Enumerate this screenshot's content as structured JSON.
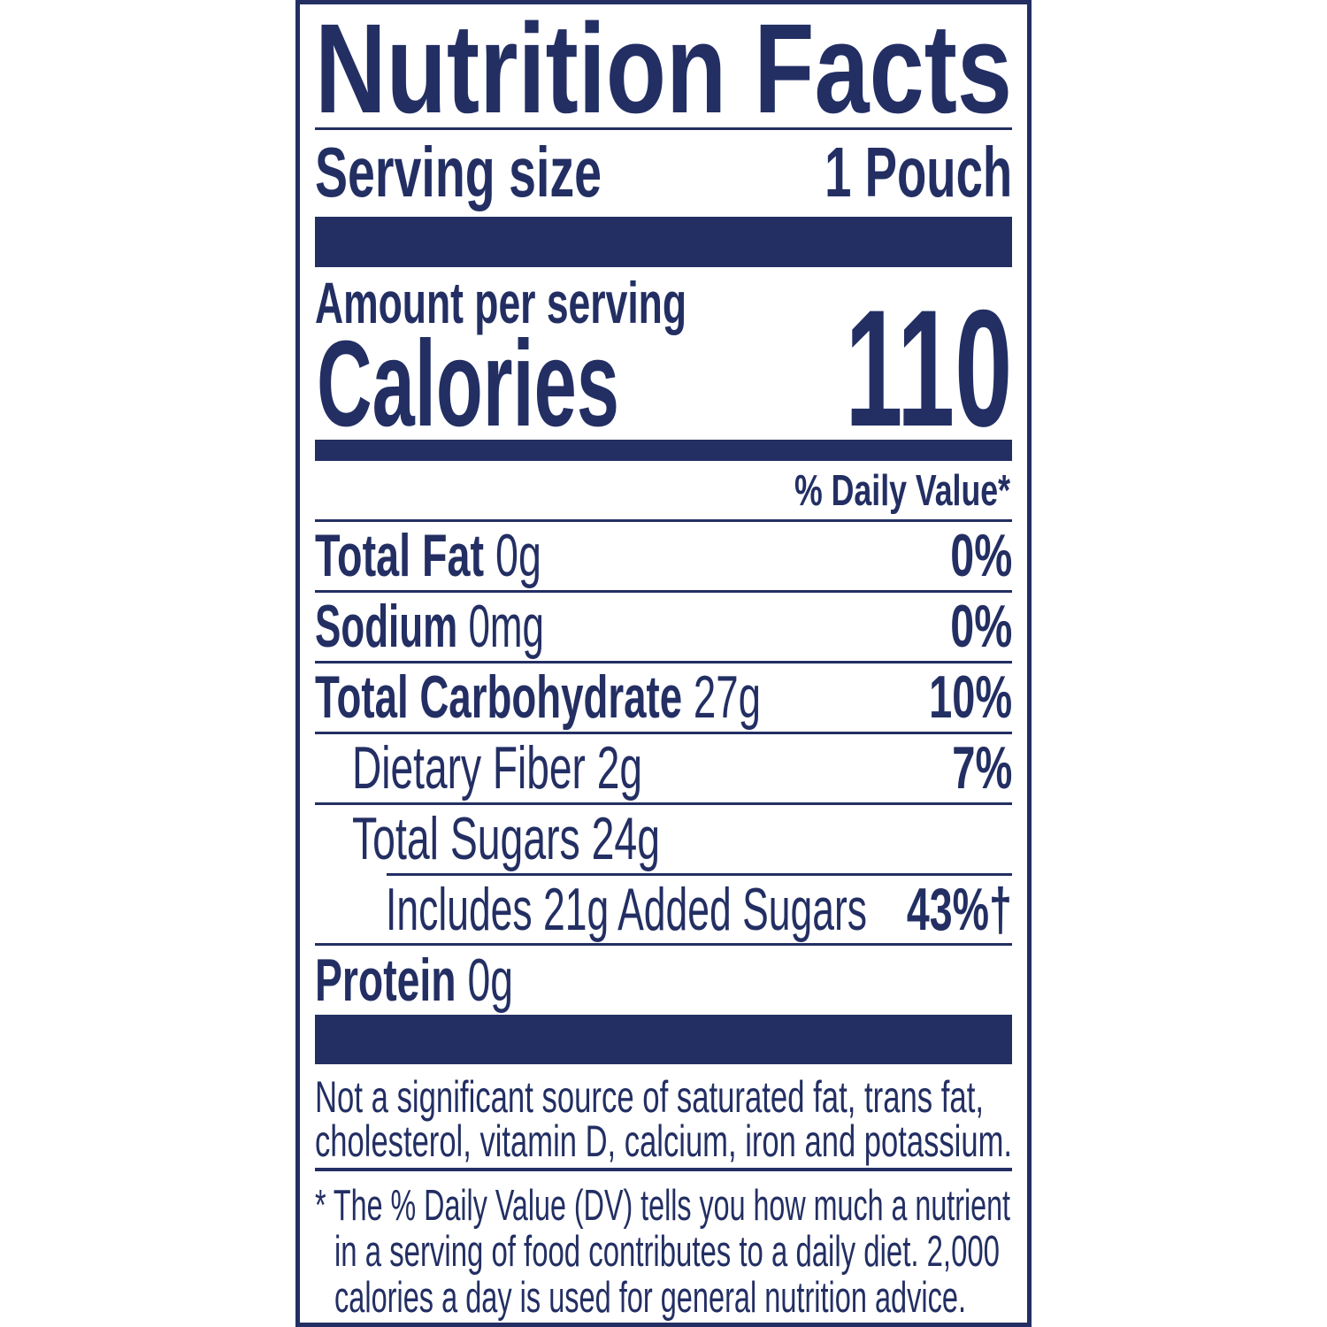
{
  "color": "#232f63",
  "title": "Nutrition Facts",
  "serving": {
    "label": "Serving size",
    "value": "1 Pouch"
  },
  "amount_per_serving": "Amount per serving",
  "calories": {
    "label": "Calories",
    "value": "110"
  },
  "daily_value_header": "% Daily Value*",
  "nutrients": [
    {
      "name": "Total Fat",
      "amount": "0g",
      "dv": "0%"
    },
    {
      "name": "Sodium",
      "amount": "0mg",
      "dv": "0%"
    },
    {
      "name": "Total Carbohydrate",
      "amount": "27g",
      "dv": "10%"
    },
    {
      "name": "Dietary Fiber 2g",
      "dv": "7%"
    },
    {
      "name": "Total Sugars 24g"
    },
    {
      "name": "Includes 21g Added Sugars",
      "dv": "43%†"
    },
    {
      "name": "Protein",
      "amount": "0g"
    }
  ],
  "footnotes": {
    "not_significant": [
      "Not a significant source of saturated fat, trans fat,",
      "cholesterol, vitamin D, calcium, iron and potassium."
    ],
    "daily_value": [
      "* The % Daily Value (DV) tells you how much a nutrient",
      "in a serving of food contributes to a daily diet. 2,000",
      "calories a day is used for general nutrition advice."
    ]
  }
}
